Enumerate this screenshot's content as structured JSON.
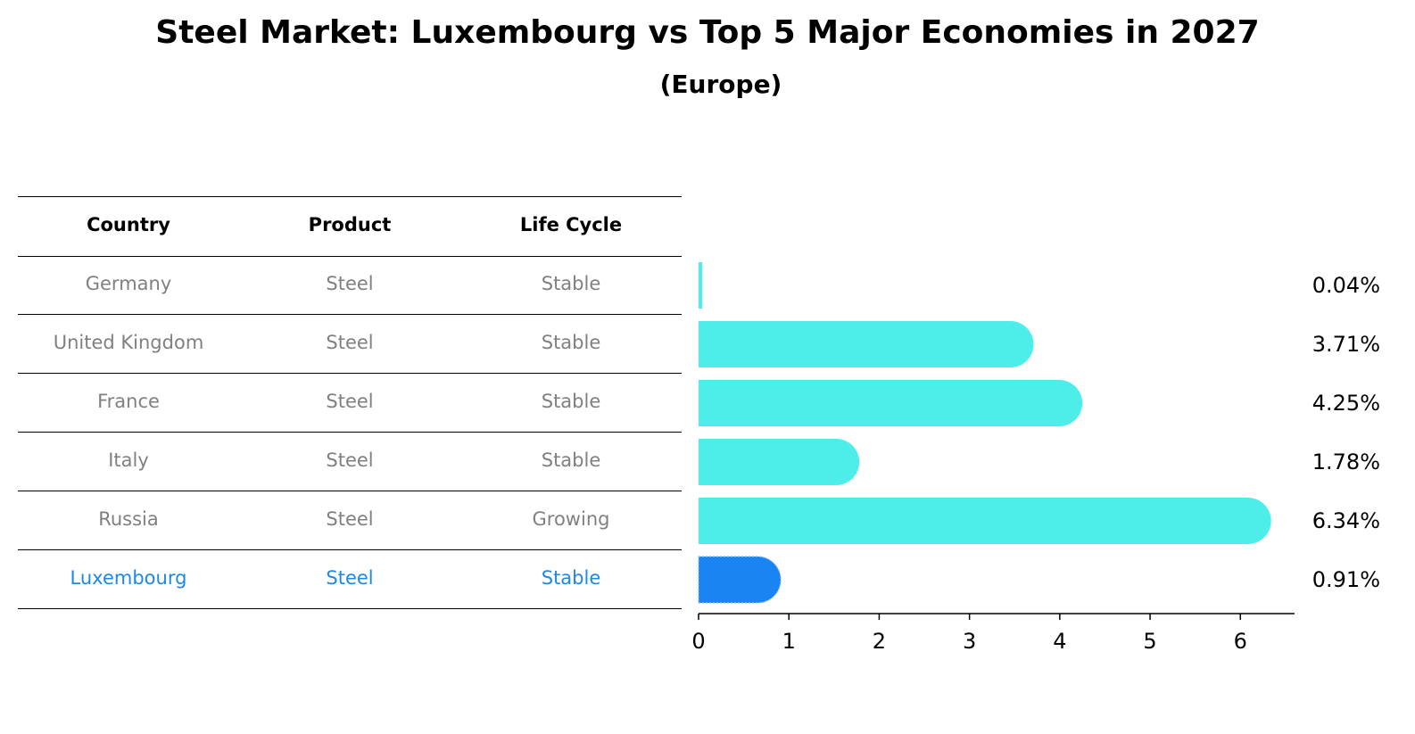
{
  "title": "Steel Market: Luxembourg vs Top 5 Major Economies in 2027",
  "subtitle": "(Europe)",
  "table": {
    "columns": [
      "Country",
      "Product",
      "Life Cycle"
    ],
    "rows": [
      {
        "country": "Germany",
        "product": "Steel",
        "life_cycle": "Stable"
      },
      {
        "country": "United Kingdom",
        "product": "Steel",
        "life_cycle": "Stable"
      },
      {
        "country": "France",
        "product": "Steel",
        "life_cycle": "Stable"
      },
      {
        "country": "Italy",
        "product": "Steel",
        "life_cycle": "Stable"
      },
      {
        "country": "Russia",
        "product": "Steel",
        "life_cycle": "Growing"
      },
      {
        "country": "Luxembourg",
        "product": "Steel",
        "life_cycle": "Stable"
      }
    ]
  },
  "colors": {
    "bar": "#4dedea",
    "highlight": "#1a85f2",
    "muted_text": "#808080",
    "highlight_text": "#1e88e5"
  },
  "chart_data": {
    "type": "bar",
    "orientation": "horizontal",
    "categories": [
      "Germany",
      "United Kingdom",
      "France",
      "Italy",
      "Russia",
      "Luxembourg"
    ],
    "values": [
      0.04,
      3.71,
      4.25,
      1.78,
      6.34,
      0.91
    ],
    "value_labels": [
      "0.04%",
      "3.71%",
      "4.25%",
      "1.78%",
      "6.34%",
      "0.91%"
    ],
    "highlight": "Luxembourg",
    "xlim": [
      0,
      6.6
    ],
    "xticks": [
      0,
      1,
      2,
      3,
      4,
      5,
      6
    ],
    "xlabel": "",
    "ylabel": ""
  }
}
